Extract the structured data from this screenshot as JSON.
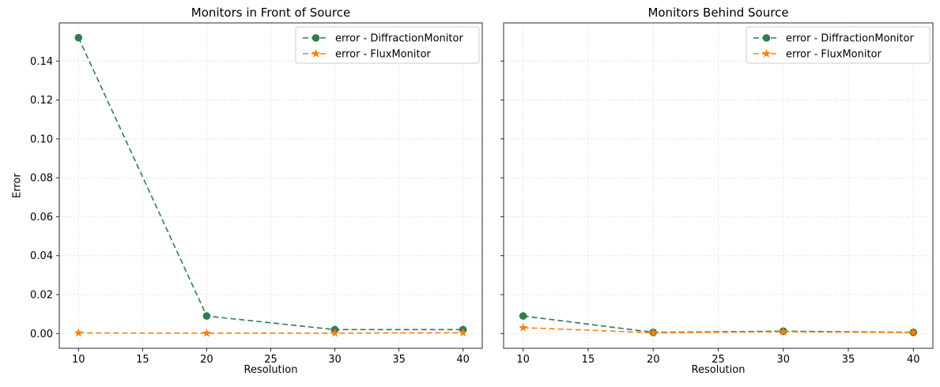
{
  "figure": {
    "background": "#ffffff",
    "frame_color": "#2b2b2b",
    "grid_color": "#cccccc",
    "legend_border_color": "#cccccc"
  },
  "chart_data": [
    {
      "type": "line",
      "title": "Monitors in Front of Source",
      "xlabel": "Resolution",
      "ylabel": "Error",
      "x": [
        10,
        20,
        30,
        40
      ],
      "xticks": [
        10,
        15,
        20,
        25,
        30,
        35,
        40
      ],
      "yticks": [
        0.0,
        0.02,
        0.04,
        0.06,
        0.08,
        0.1,
        0.12,
        0.14
      ],
      "ytick_labels": [
        "0.00",
        "0.02",
        "0.04",
        "0.06",
        "0.08",
        "0.10",
        "0.12",
        "0.14"
      ],
      "show_ytick_labels": true,
      "xlim": [
        8.5,
        41.5
      ],
      "ylim": [
        -0.0076,
        0.1596
      ],
      "grid": true,
      "grid_style": "dotted",
      "legend_position": "upper right",
      "series": [
        {
          "name": "error - DiffractionMonitor",
          "color": "#2e7d4f",
          "marker": "circle",
          "linestyle": "dashed",
          "values": [
            0.152,
            0.009,
            0.002,
            0.002
          ]
        },
        {
          "name": "error - FluxMonitor",
          "color": "#ff7f0e",
          "marker": "star",
          "linestyle": "dashed",
          "values": [
            0.0003,
            0.0002,
            0.0002,
            0.0004
          ]
        }
      ]
    },
    {
      "type": "line",
      "title": "Monitors Behind Source",
      "xlabel": "Resolution",
      "ylabel": "",
      "x": [
        10,
        20,
        30,
        40
      ],
      "xticks": [
        10,
        15,
        20,
        25,
        30,
        35,
        40
      ],
      "yticks": [
        0.0,
        0.02,
        0.04,
        0.06,
        0.08,
        0.1,
        0.12,
        0.14
      ],
      "ytick_labels": [],
      "show_ytick_labels": false,
      "xlim": [
        8.5,
        41.5
      ],
      "ylim": [
        -0.0076,
        0.1596
      ],
      "grid": true,
      "grid_style": "dotted",
      "legend_position": "upper right",
      "series": [
        {
          "name": "error - DiffractionMonitor",
          "color": "#2e7d4f",
          "marker": "circle",
          "linestyle": "dashed",
          "values": [
            0.009,
            0.0006,
            0.0012,
            0.0006
          ]
        },
        {
          "name": "error - FluxMonitor",
          "color": "#ff7f0e",
          "marker": "star",
          "linestyle": "dashed",
          "values": [
            0.003,
            0.0004,
            0.0009,
            0.0005
          ]
        }
      ]
    }
  ]
}
